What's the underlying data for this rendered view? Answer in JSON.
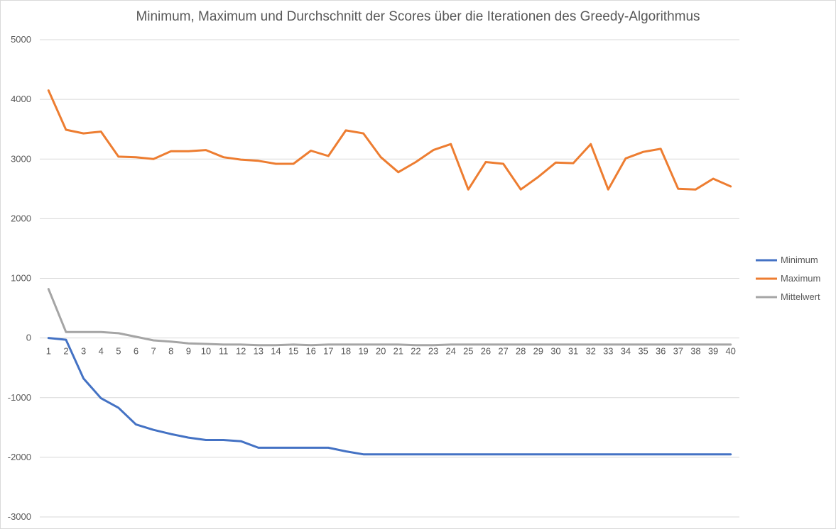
{
  "chart_data": {
    "type": "line",
    "title": "Minimum, Maximum und Durchschnitt der Scores über die Iterationen des Greedy-Algorithmus",
    "xlabel": "",
    "ylabel": "",
    "ylim": [
      -3000,
      5000
    ],
    "yticks": [
      5000,
      4000,
      3000,
      2000,
      1000,
      0,
      -1000,
      -2000,
      -3000
    ],
    "grid": true,
    "legend_position": "right",
    "categories": [
      "1",
      "2",
      "3",
      "4",
      "5",
      "6",
      "7",
      "8",
      "9",
      "10",
      "11",
      "12",
      "13",
      "14",
      "15",
      "16",
      "17",
      "18",
      "19",
      "20",
      "21",
      "22",
      "23",
      "24",
      "25",
      "26",
      "27",
      "28",
      "29",
      "30",
      "31",
      "32",
      "33",
      "34",
      "35",
      "36",
      "37",
      "38",
      "39",
      "40"
    ],
    "series": [
      {
        "name": "Minimum",
        "color": "#4472c4",
        "values": [
          0,
          -30,
          -680,
          -1010,
          -1170,
          -1450,
          -1540,
          -1610,
          -1670,
          -1710,
          -1710,
          -1730,
          -1840,
          -1840,
          -1840,
          -1840,
          -1840,
          -1900,
          -1950,
          -1950,
          -1950,
          -1950,
          -1950,
          -1950,
          -1950,
          -1950,
          -1950,
          -1950,
          -1950,
          -1950,
          -1950,
          -1950,
          -1950,
          -1950,
          -1950,
          -1950,
          -1950,
          -1950,
          -1950,
          -1950
        ]
      },
      {
        "name": "Maximum",
        "color": "#ed7d31",
        "values": [
          4150,
          3490,
          3430,
          3460,
          3040,
          3030,
          3000,
          3130,
          3130,
          3150,
          3030,
          2990,
          2970,
          2920,
          2920,
          3140,
          3050,
          3480,
          3430,
          3030,
          2780,
          2950,
          3150,
          3250,
          2490,
          2950,
          2920,
          2490,
          2700,
          2940,
          2930,
          3250,
          2490,
          3010,
          3120,
          3170,
          2500,
          2490,
          2670,
          2540
        ]
      },
      {
        "name": "Mittelwert",
        "color": "#a5a5a5",
        "values": [
          820,
          100,
          100,
          100,
          80,
          20,
          -40,
          -60,
          -90,
          -100,
          -110,
          -110,
          -120,
          -120,
          -110,
          -120,
          -110,
          -110,
          -110,
          -110,
          -110,
          -120,
          -120,
          -110,
          -110,
          -110,
          -110,
          -110,
          -110,
          -110,
          -110,
          -110,
          -110,
          -110,
          -110,
          -110,
          -110,
          -110,
          -110,
          -110
        ]
      }
    ]
  }
}
